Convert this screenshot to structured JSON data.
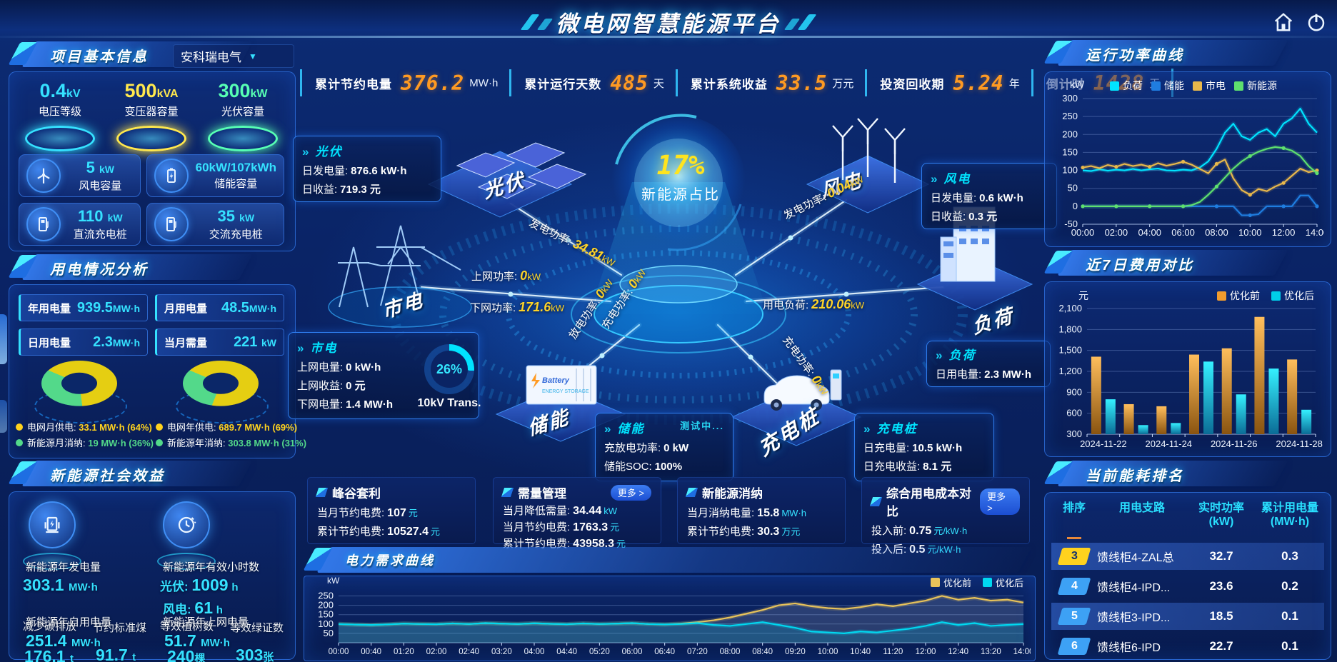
{
  "header": {
    "title": "微电网智慧能源平台"
  },
  "kpi_bar": [
    {
      "label": "累计节约电量",
      "value": "376.2",
      "unit": "MW·h"
    },
    {
      "label": "累计运行天数",
      "value": "485",
      "unit": "天"
    },
    {
      "label": "累计系统收益",
      "value": "33.5",
      "unit": "万元"
    },
    {
      "label": "投资回收期",
      "value": "5.24",
      "unit": "年"
    },
    {
      "label": "倒计时",
      "value": "1428",
      "unit": "天"
    }
  ],
  "project": {
    "title": "项目基本信息",
    "company": "安科瑞电气",
    "podiums": [
      {
        "value": "0.4",
        "unit": "kV",
        "label": "电压等级",
        "color": "#35e1ff"
      },
      {
        "value": "500",
        "unit": "kVA",
        "label": "变压器容量",
        "color": "#ffe84d"
      },
      {
        "value": "300",
        "unit": "kW",
        "label": "光伏容量",
        "color": "#57ffb4"
      }
    ],
    "capacities": [
      {
        "value": "5",
        "unit": "kW",
        "label": "风电容量"
      },
      {
        "value": "60kW/107kWh",
        "unit": "",
        "label": "储能容量"
      },
      {
        "value": "110",
        "unit": "kW",
        "label": "直流充电桩"
      },
      {
        "value": "35",
        "unit": "kW",
        "label": "交流充电桩"
      }
    ]
  },
  "usage": {
    "title": "用电情况分析",
    "stats": [
      {
        "label": "年用电量",
        "value": "939.5",
        "unit": "MW·h"
      },
      {
        "label": "月用电量",
        "value": "48.5",
        "unit": "MW·h"
      },
      {
        "label": "日用电量",
        "value": "2.3",
        "unit": "MW·h"
      },
      {
        "label": "当月需量",
        "value": "221",
        "unit": "kW"
      }
    ],
    "month_legend": [
      {
        "label": "电网月供电:",
        "value": "33.1 MW·h (64%)",
        "color": "#ffd21e"
      },
      {
        "label": "新能源月消纳:",
        "value": "19 MW·h (36%)",
        "color": "#53d98a"
      }
    ],
    "year_legend": [
      {
        "label": "电网年供电:",
        "value": "689.7 MW·h (69%)",
        "color": "#ffd21e"
      },
      {
        "label": "新能源年消纳:",
        "value": "303.8 MW·h (31%)",
        "color": "#53d98a"
      }
    ]
  },
  "benefit": {
    "title": "新能源社会效益",
    "items": [
      {
        "label": "新能源年发电量",
        "value": "303.1",
        "unit": "MW·h"
      },
      {
        "label": "新能源年有效小时数",
        "pv_label": "光伏:",
        "pv_value": "1009",
        "pv_unit": "h",
        "wind_label": "风电:",
        "wind_value": "61",
        "wind_unit": "h"
      },
      {
        "label": "新能源年自用电量",
        "value": "251.4",
        "unit": "MW·h"
      },
      {
        "label": "减少碳排放",
        "value": "176.1",
        "unit": "t"
      },
      {
        "label": "节约标准煤",
        "value": "91.7",
        "unit": "t"
      },
      {
        "label": "新能源年上网电量",
        "value": "51.7",
        "unit": "MW·h"
      },
      {
        "label": "等效植树数",
        "value": "240",
        "unit": "棵"
      },
      {
        "label": "等效绿证数",
        "value": "303",
        "unit": "张"
      }
    ]
  },
  "diagram": {
    "center": {
      "value": "17%",
      "label": "新能源占比"
    },
    "nodes": {
      "pv": "光伏",
      "wind": "风电",
      "grid": "市电",
      "load": "负荷",
      "storage": "储能",
      "charger": "充电桩"
    },
    "flows": [
      {
        "label": "发电功率:",
        "value": "34.81",
        "unit": "kW"
      },
      {
        "label": "发电功率:",
        "value": "0.04",
        "unit": "kW"
      },
      {
        "label": "上网功率:",
        "value": "0",
        "unit": "kW"
      },
      {
        "label": "下网功率:",
        "value": "171.6",
        "unit": "kW"
      },
      {
        "label": "用电负荷:",
        "value": "210.06",
        "unit": "kW"
      },
      {
        "label": "充电功率:",
        "value": "0",
        "unit": "kW"
      },
      {
        "label": "放电功率:",
        "value": "0",
        "unit": "kW"
      },
      {
        "label": "充电功率:",
        "value": "0",
        "unit": "kW"
      }
    ],
    "transformer": {
      "value": "26%",
      "label": "10kV Trans."
    },
    "boxes": {
      "pv": {
        "title": "光伏",
        "rows": [
          {
            "label": "日发电量:",
            "value": "876.6 kW·h"
          },
          {
            "label": "日收益:",
            "value": "719.3 元"
          }
        ]
      },
      "wind": {
        "title": "风电",
        "rows": [
          {
            "label": "日发电量:",
            "value": "0.6 kW·h"
          },
          {
            "label": "日收益:",
            "value": "0.3 元"
          }
        ]
      },
      "grid": {
        "title": "市电",
        "rows": [
          {
            "label": "上网电量:",
            "value": "0 kW·h"
          },
          {
            "label": "上网收益:",
            "value": "0 元"
          },
          {
            "label": "下网电量:",
            "value": "1.4 MW·h"
          }
        ]
      },
      "load": {
        "title": "负荷",
        "rows": [
          {
            "label": "日用电量:",
            "value": "2.3 MW·h"
          }
        ]
      },
      "storage": {
        "title": "储能",
        "status": "测试中...",
        "rows": [
          {
            "label": "充放电功率:",
            "value": "0 kW"
          },
          {
            "label": "储能SOC:",
            "value": "100%"
          }
        ]
      },
      "charger": {
        "title": "充电桩",
        "rows": [
          {
            "label": "日充电量:",
            "value": "10.5 kW·h"
          },
          {
            "label": "日充电收益:",
            "value": "8.1 元"
          }
        ]
      }
    }
  },
  "cards": [
    {
      "title": "峰谷套利",
      "rows": [
        {
          "label": "当月节约电费:",
          "value": "107",
          "unit": "元"
        },
        {
          "label": "累计节约电费:",
          "value": "10527.4",
          "unit": "元"
        }
      ]
    },
    {
      "title": "需量管理",
      "more": "更多 >",
      "rows": [
        {
          "label": "当月降低需量:",
          "value": "34.44",
          "unit": "kW"
        },
        {
          "label": "当月节约电费:",
          "value": "1763.3",
          "unit": "元"
        },
        {
          "label": "累计节约电费:",
          "value": "43958.3",
          "unit": "元"
        }
      ]
    },
    {
      "title": "新能源消纳",
      "rows": [
        {
          "label": "当月消纳电量:",
          "value": "15.8",
          "unit": "MW·h"
        },
        {
          "label": "累计节约电费:",
          "value": "30.3",
          "unit": "万元"
        }
      ]
    },
    {
      "title": "综合用电成本对比",
      "more": "更多 >",
      "rows": [
        {
          "label": "投入前:",
          "value": "0.75",
          "unit": "元/kW·h"
        },
        {
          "label": "投入后:",
          "value": "0.5",
          "unit": "元/kW·h"
        }
      ]
    }
  ],
  "ranking": {
    "title": "当前能耗排名",
    "headers": [
      "排序",
      "用电支路",
      "实时功率\n(kW)",
      "累计用电量\n(MW·h)"
    ],
    "rows": [
      {
        "rank": "3",
        "name": "馈线柜4-ZAL总",
        "power": "32.7",
        "energy": "0.3",
        "badge": "#ffd21e"
      },
      {
        "rank": "4",
        "name": "馈线柜4-IPD...",
        "power": "23.6",
        "energy": "0.2",
        "badge": "#3da1f5"
      },
      {
        "rank": "5",
        "name": "馈线柜3-IPD...",
        "power": "18.5",
        "energy": "0.1",
        "badge": "#3da1f5"
      },
      {
        "rank": "6",
        "name": "馈线柜6-IPD",
        "power": "22.7",
        "energy": "0.1",
        "badge": "#3da1f5"
      }
    ]
  },
  "chart_data": [
    {
      "id": "power_curve",
      "type": "line",
      "title": "运行功率曲线",
      "ylabel": "kW",
      "ylim": [
        -50,
        300
      ],
      "yticks": [
        300,
        250,
        200,
        150,
        100,
        50,
        0,
        -50
      ],
      "x_labels": [
        "00:00",
        "02:00",
        "04:00",
        "06:00",
        "08:00",
        "10:00",
        "12:00",
        "14:00"
      ],
      "legend_position": "top",
      "series": [
        {
          "name": "负荷",
          "color": "#00e4ff",
          "values": [
            100,
            98,
            103,
            99,
            102,
            100,
            104,
            100,
            103,
            105,
            100,
            99,
            102,
            100,
            108,
            125,
            160,
            205,
            230,
            195,
            185,
            205,
            215,
            195,
            230,
            245,
            272,
            230,
            205
          ]
        },
        {
          "name": "储能",
          "color": "#1f7de0",
          "marker": 4,
          "values": [
            0,
            0,
            0,
            0,
            0,
            0,
            0,
            0,
            0,
            0,
            0,
            0,
            0,
            0,
            0,
            0,
            0,
            0,
            0,
            -25,
            -25,
            -22,
            0,
            0,
            0,
            0,
            30,
            30,
            0
          ]
        },
        {
          "name": "市电",
          "color": "#e8b84b",
          "marker": 4,
          "values": [
            108,
            112,
            106,
            115,
            110,
            118,
            112,
            116,
            110,
            120,
            113,
            118,
            124,
            116,
            104,
            92,
            118,
            130,
            78,
            45,
            32,
            48,
            42,
            55,
            65,
            85,
            105,
            95,
            100
          ]
        },
        {
          "name": "新能源",
          "color": "#5ee06e",
          "marker": 4,
          "values": [
            0,
            0,
            0,
            0,
            0,
            0,
            0,
            0,
            0,
            0,
            0,
            0,
            0,
            3,
            12,
            32,
            55,
            80,
            105,
            125,
            140,
            152,
            160,
            165,
            162,
            155,
            140,
            112,
            92
          ]
        }
      ]
    },
    {
      "id": "cost_compare",
      "type": "bar",
      "title": "近7日费用对比",
      "ylabel": "元",
      "ylim": [
        300,
        2100
      ],
      "yticks": [
        2100,
        1800,
        1500,
        1200,
        900,
        600,
        300
      ],
      "categories": [
        "2024-11-22",
        "2024-11-23",
        "2024-11-24",
        "2024-11-25",
        "2024-11-26",
        "2024-11-27",
        "2024-11-28"
      ],
      "x_tick_indices": [
        0,
        2,
        4,
        6
      ],
      "legend_position": "top-right",
      "series": [
        {
          "name": "优化前",
          "color": "#f09b2d",
          "grad": [
            "#ffbe5c",
            "#8a5410"
          ],
          "values": [
            1410,
            730,
            700,
            1440,
            1530,
            1980,
            1370
          ]
        },
        {
          "name": "优化后",
          "color": "#00cde8",
          "grad": [
            "#35f0ff",
            "#0b6c96"
          ],
          "values": [
            800,
            430,
            460,
            1340,
            870,
            1240,
            650
          ]
        }
      ]
    },
    {
      "id": "demand_curve",
      "type": "line",
      "title": "电力需求曲线",
      "ylabel": "kW",
      "ylim": [
        0,
        290
      ],
      "yticks": [
        250,
        200,
        150,
        100,
        50
      ],
      "x_labels": [
        "00:00",
        "00:40",
        "01:20",
        "02:00",
        "02:40",
        "03:20",
        "04:00",
        "04:40",
        "05:20",
        "06:00",
        "06:40",
        "07:20",
        "08:00",
        "08:40",
        "09:20",
        "10:00",
        "10:40",
        "11:20",
        "12:00",
        "12:40",
        "13:20",
        "14:00"
      ],
      "legend_position": "top-right",
      "series": [
        {
          "name": "优化前",
          "color": "#e8c35a",
          "fill": "rgba(190,200,215,0.18)",
          "values": [
            100,
            97,
            95,
            98,
            102,
            100,
            99,
            103,
            100,
            105,
            102,
            100,
            104,
            101,
            99,
            103,
            100,
            102,
            105,
            100,
            98,
            102,
            110,
            120,
            135,
            155,
            175,
            200,
            210,
            195,
            185,
            180,
            190,
            205,
            195,
            210,
            225,
            250,
            230,
            240,
            225,
            230,
            215
          ]
        },
        {
          "name": "优化后",
          "color": "#00d8f0",
          "fill": "rgba(0,216,240,0.16)",
          "values": [
            100,
            97,
            95,
            98,
            102,
            100,
            99,
            103,
            100,
            105,
            102,
            100,
            104,
            101,
            99,
            103,
            100,
            102,
            105,
            100,
            98,
            100,
            105,
            95,
            90,
            100,
            110,
            95,
            80,
            60,
            55,
            50,
            60,
            55,
            65,
            75,
            90,
            110,
            95,
            105,
            90,
            95,
            100
          ]
        }
      ]
    },
    {
      "id": "month_donut",
      "type": "pie",
      "labels": [
        "电网月供电",
        "新能源月消纳"
      ],
      "values": [
        64,
        36
      ],
      "colors": [
        "#e5ce12",
        "#53d98a"
      ]
    },
    {
      "id": "year_donut",
      "type": "pie",
      "labels": [
        "电网年供电",
        "新能源年消纳"
      ],
      "values": [
        69,
        31
      ],
      "colors": [
        "#e5ce12",
        "#53d98a"
      ]
    }
  ]
}
